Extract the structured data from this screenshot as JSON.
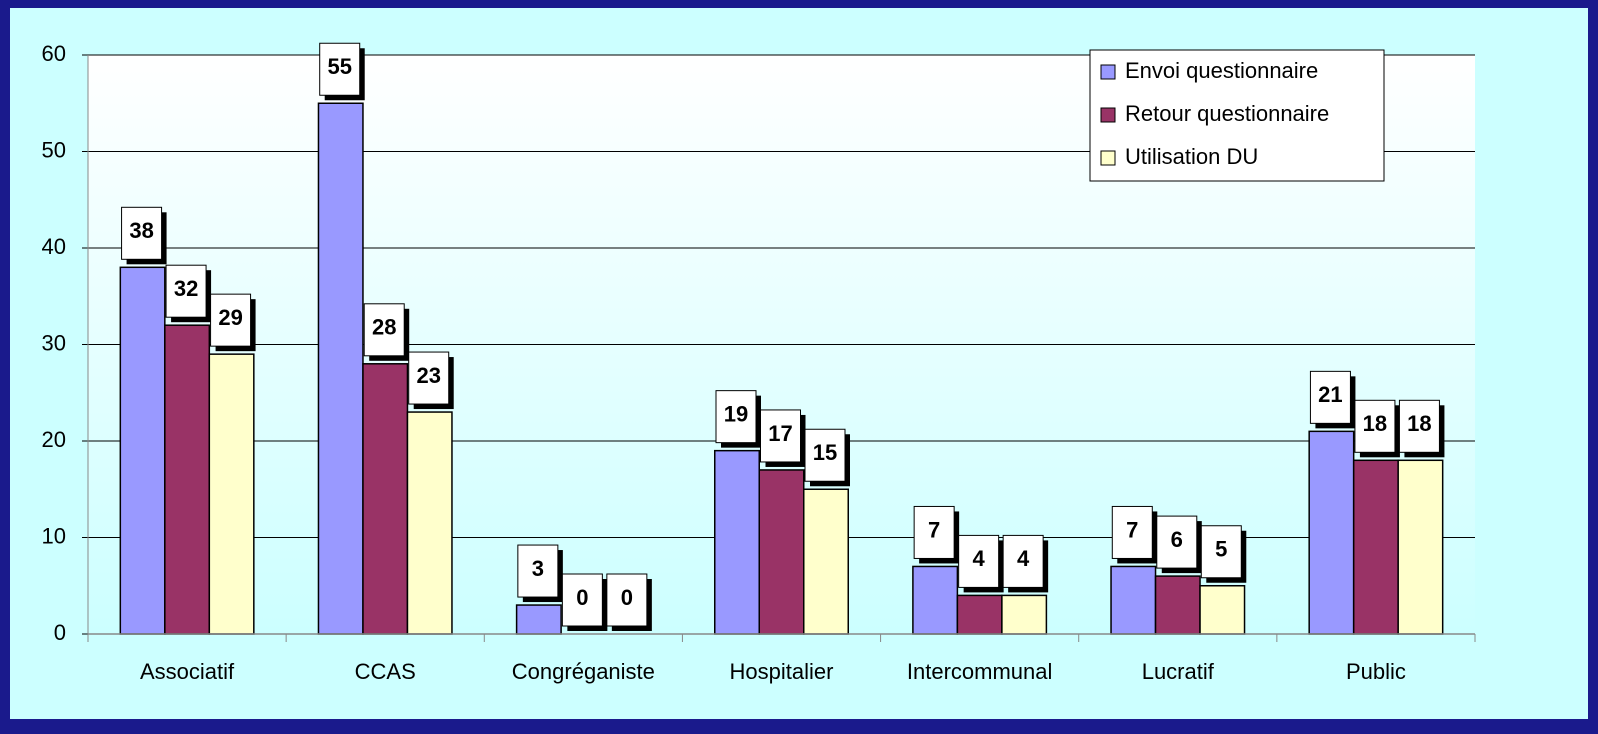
{
  "chart_data": {
    "type": "bar",
    "categories": [
      "Associatif",
      "CCAS",
      "Congréganiste",
      "Hospitalier",
      "Intercommunal",
      "Lucratif",
      "Public"
    ],
    "series": [
      {
        "name": "Envoi questionnaire",
        "color": "#9999ff",
        "values": [
          38,
          55,
          3,
          19,
          7,
          7,
          21
        ]
      },
      {
        "name": "Retour questionnaire",
        "color": "#993366",
        "values": [
          32,
          28,
          0,
          17,
          4,
          6,
          18
        ]
      },
      {
        "name": "Utilisation DU",
        "color": "#ffffcc",
        "values": [
          29,
          23,
          0,
          15,
          4,
          5,
          18
        ]
      }
    ],
    "ylim": [
      0,
      60
    ],
    "yticks": [
      0,
      10,
      20,
      30,
      40,
      50,
      60
    ],
    "grid": true,
    "legend": "top-right"
  }
}
